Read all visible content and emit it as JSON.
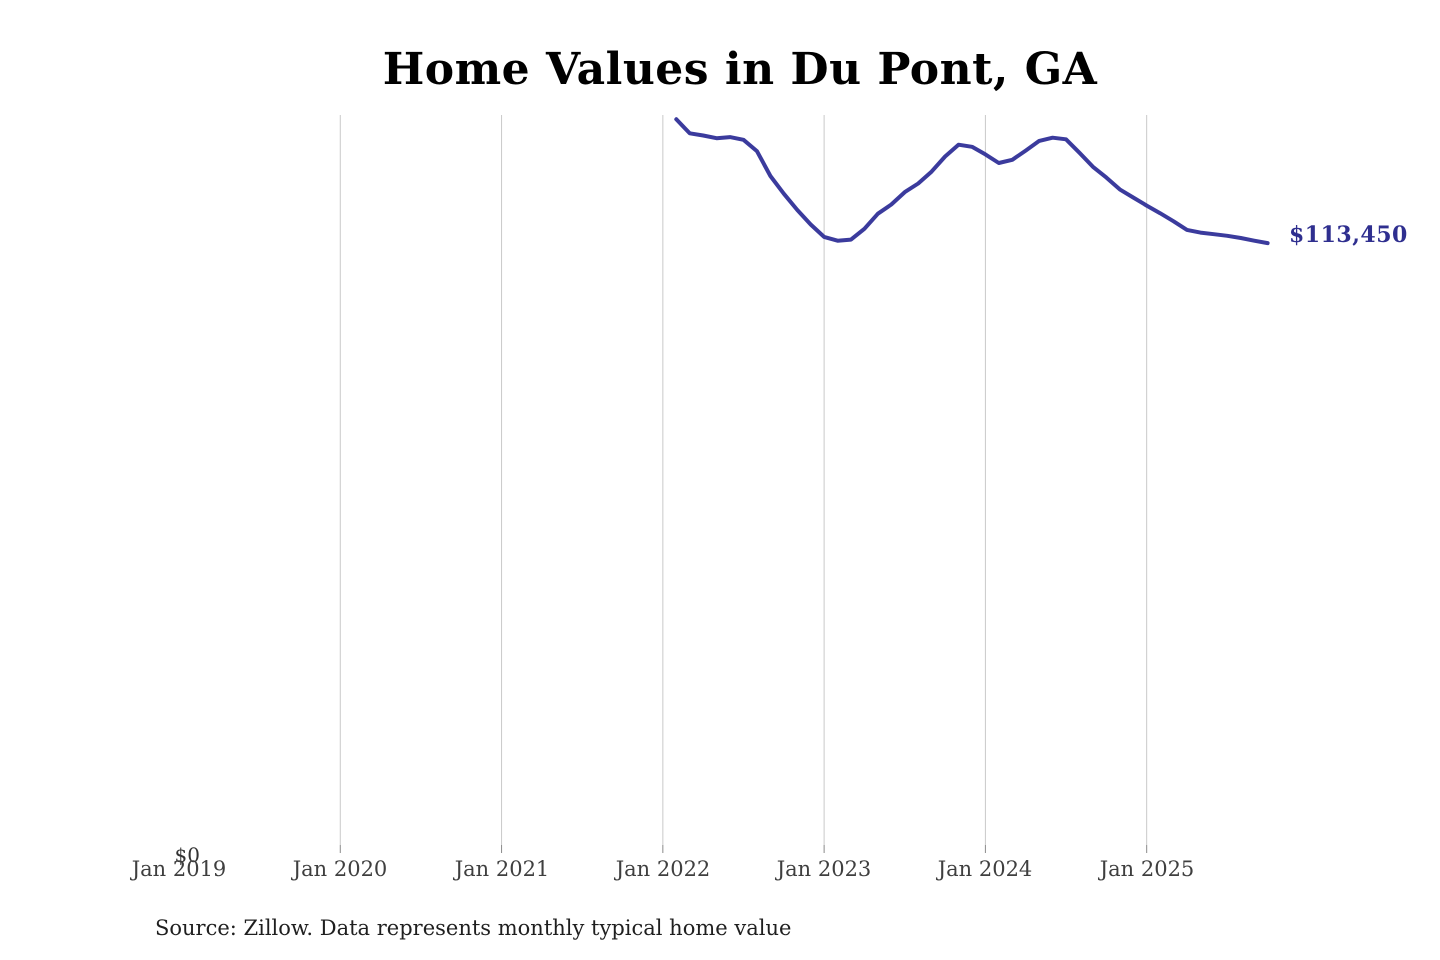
{
  "title": "Home Values in Du Pont, GA",
  "source_note": "Source: Zillow. Data represents monthly typical home value",
  "y_axis": {
    "zero_label": "$0"
  },
  "x_axis_labels": [
    "Jan 2019",
    "Jan 2020",
    "Jan 2021",
    "Jan 2022",
    "Jan 2023",
    "Jan 2024",
    "Jan 2025"
  ],
  "end_label": "$113,450",
  "colors": {
    "line": "#3b3b9d",
    "end_label": "#2f2f8f",
    "gridline": "#c9c9c9",
    "tick": "#8a8a8a",
    "axis_label": "#3f3f3f",
    "title": "#000000",
    "source": "#1f1f1f",
    "background": "#ffffff"
  },
  "chart_data": {
    "type": "line",
    "title": "Home Values in Du Pont, GA",
    "x": [
      "Feb 2022",
      "Mar 2022",
      "Apr 2022",
      "May 2022",
      "Jun 2022",
      "Jul 2022",
      "Aug 2022",
      "Sep 2022",
      "Oct 2022",
      "Nov 2022",
      "Dec 2022",
      "Jan 2023",
      "Feb 2023",
      "Mar 2023",
      "Apr 2023",
      "May 2023",
      "Jun 2023",
      "Jul 2023",
      "Aug 2023",
      "Sep 2023",
      "Oct 2023",
      "Nov 2023",
      "Dec 2023",
      "Jan 2024",
      "Feb 2024",
      "Mar 2024",
      "Apr 2024",
      "May 2024",
      "Jun 2024",
      "Jul 2024",
      "Aug 2024",
      "Sep 2024",
      "Oct 2024",
      "Nov 2024",
      "Dec 2024",
      "Jan 2025",
      "Feb 2025",
      "Mar 2025",
      "Apr 2025",
      "May 2025",
      "Jun 2025",
      "Jul 2025",
      "Aug 2025",
      "Sep 2025",
      "Oct 2025"
    ],
    "values": [
      136400,
      133800,
      133400,
      132900,
      133100,
      132600,
      130500,
      125900,
      122600,
      119600,
      116900,
      114600,
      113900,
      114100,
      116100,
      118900,
      120600,
      122900,
      124500,
      126700,
      129500,
      131700,
      131300,
      129900,
      128300,
      128900,
      130600,
      132400,
      133000,
      132700,
      130200,
      127600,
      125600,
      123400,
      121900,
      120400,
      119000,
      117500,
      115900,
      115400,
      115100,
      114800,
      114400,
      113900,
      113450
    ],
    "xlabel": "",
    "ylabel": "",
    "x_tick_labels": [
      "Jan 2019",
      "Jan 2020",
      "Jan 2021",
      "Jan 2022",
      "Jan 2023",
      "Jan 2024",
      "Jan 2025"
    ],
    "x_range": [
      "Jan 2019",
      "Nov 2025"
    ],
    "y_min": 0,
    "y_min_label": "$0",
    "end_value": 113450,
    "end_value_label": "$113,450",
    "legend": "none",
    "grid": "vertical-gridlines-at-each-january"
  }
}
